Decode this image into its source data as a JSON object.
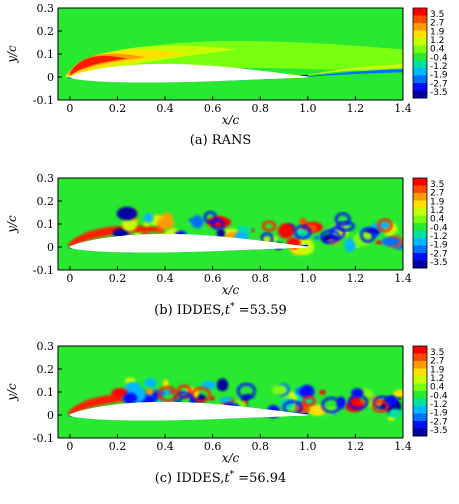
{
  "figure": {
    "panels": [
      {
        "id": "a",
        "caption": "(a) RANS",
        "mode": "rans"
      },
      {
        "id": "b",
        "caption": "(b) IDDES,t* =53.59",
        "caption_parts": [
          "(b) IDDES,",
          "t",
          "*",
          " =53.59"
        ],
        "mode": "iddes",
        "seed": 11
      },
      {
        "id": "c",
        "caption": "(c) IDDES,t* =56.94",
        "caption_parts": [
          "(c) IDDES,",
          "t",
          "*",
          " =56.94"
        ],
        "mode": "iddes",
        "seed": 29
      }
    ],
    "colorbar": {
      "labels": [
        "3.5",
        "2.7",
        "1.9",
        "1.2",
        "0.4",
        "-0.4",
        "-1.2",
        "-1.9",
        "-2.7",
        "-3.5"
      ],
      "colors": [
        "#ff0000",
        "#ff4a00",
        "#ff9a00",
        "#ffe000",
        "#c8ff00",
        "#7aff10",
        "#28e830",
        "#00e0a0",
        "#00b8ff",
        "#0070ff",
        "#0010ff",
        "#0000a0"
      ]
    },
    "axes": {
      "xlabel": "x/c",
      "ylabel": "y/c",
      "x_ticks": [
        "0",
        "0.2",
        "0.4",
        "0.6",
        "0.8",
        "1.0",
        "1.2",
        "1.4"
      ],
      "y_ticks": [
        "0.3",
        "0.2",
        "0.1",
        "0",
        "-0.1"
      ],
      "xlim": [
        -0.05,
        1.4
      ],
      "ylim": [
        -0.1,
        0.3
      ]
    }
  }
}
